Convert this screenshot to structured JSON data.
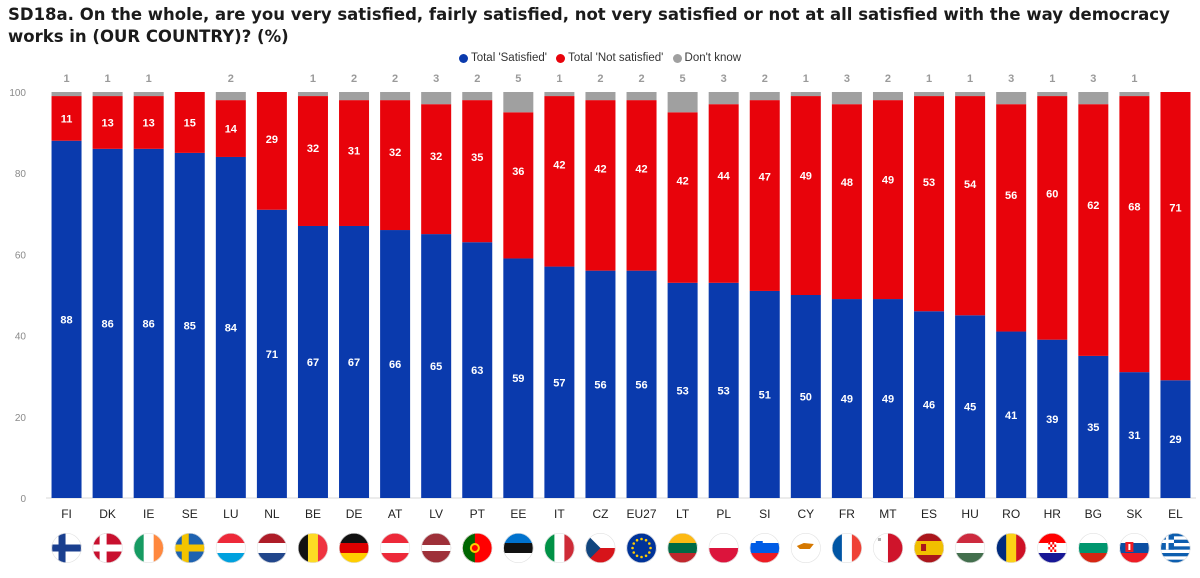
{
  "chart_data": {
    "type": "bar",
    "stacked": true,
    "title": "SD18a. On the whole, are you very satisfied, fairly satisfied, not very satisfied or not at all satisfied with the way democracy works in (OUR COUNTRY)? (%)",
    "xlabel": "",
    "ylabel": "",
    "ylim": [
      0,
      100
    ],
    "yticks": [
      0,
      20,
      40,
      60,
      80,
      100
    ],
    "legend_position": "top-center",
    "categories": [
      "FI",
      "DK",
      "IE",
      "SE",
      "LU",
      "NL",
      "BE",
      "DE",
      "AT",
      "LV",
      "PT",
      "EE",
      "IT",
      "CZ",
      "EU27",
      "LT",
      "PL",
      "SI",
      "CY",
      "FR",
      "MT",
      "ES",
      "HU",
      "RO",
      "HR",
      "BG",
      "SK",
      "EL"
    ],
    "series": [
      {
        "name": "Total 'Satisfied'",
        "color": "#0a3aad",
        "values": [
          88,
          86,
          86,
          85,
          84,
          71,
          67,
          67,
          66,
          65,
          63,
          59,
          57,
          56,
          56,
          53,
          53,
          51,
          50,
          49,
          49,
          46,
          45,
          41,
          39,
          35,
          31,
          29
        ]
      },
      {
        "name": "Total 'Not satisfied'",
        "color": "#e8030b",
        "values": [
          11,
          13,
          13,
          15,
          14,
          29,
          32,
          31,
          32,
          32,
          35,
          36,
          42,
          42,
          42,
          42,
          44,
          47,
          49,
          48,
          49,
          53,
          54,
          56,
          60,
          62,
          68,
          71
        ]
      },
      {
        "name": "Don't know",
        "color": "#a0a0a0",
        "values": [
          1,
          1,
          1,
          0,
          2,
          0,
          1,
          2,
          2,
          3,
          2,
          5,
          1,
          2,
          2,
          5,
          3,
          2,
          1,
          3,
          2,
          1,
          1,
          3,
          1,
          3,
          1,
          0
        ]
      }
    ]
  },
  "flags": {
    "FI": "flag-finland",
    "DK": "flag-denmark",
    "IE": "flag-ireland",
    "SE": "flag-sweden",
    "LU": "flag-luxembourg",
    "NL": "flag-netherlands",
    "BE": "flag-belgium",
    "DE": "flag-germany",
    "AT": "flag-austria",
    "LV": "flag-latvia",
    "PT": "flag-portugal",
    "EE": "flag-estonia",
    "IT": "flag-italy",
    "CZ": "flag-czechia",
    "EU27": "flag-european-union",
    "LT": "flag-lithuania",
    "PL": "flag-poland",
    "SI": "flag-slovenia",
    "CY": "flag-cyprus",
    "FR": "flag-france",
    "MT": "flag-malta",
    "ES": "flag-spain",
    "HU": "flag-hungary",
    "RO": "flag-romania",
    "HR": "flag-croatia",
    "BG": "flag-bulgaria",
    "SK": "flag-slovakia",
    "EL": "flag-greece"
  }
}
